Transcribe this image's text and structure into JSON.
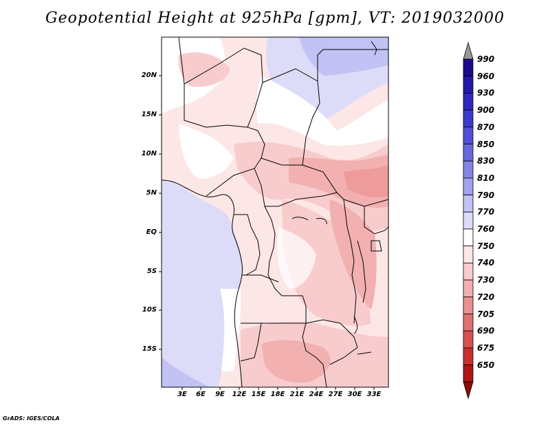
{
  "title": "Geopotential Height at 925hPa [gpm], VT: 2019032000",
  "credit": "GrADS: IGES/COLA",
  "map": {
    "lat_labels": [
      "20N",
      "15N",
      "10N",
      "5N",
      "EQ",
      "5S",
      "10S",
      "15S"
    ],
    "lon_labels": [
      "3E",
      "6E",
      "9E",
      "12E",
      "15E",
      "18E",
      "21E",
      "24E",
      "27E",
      "30E",
      "33E"
    ]
  },
  "colorbar": {
    "labels": [
      "990",
      "960",
      "930",
      "900",
      "870",
      "850",
      "830",
      "810",
      "790",
      "770",
      "760",
      "750",
      "740",
      "730",
      "720",
      "705",
      "690",
      "675",
      "650"
    ],
    "colors": [
      "#1c0a8c",
      "#2318a8",
      "#2e28bc",
      "#3a3acb",
      "#4f50d6",
      "#6868de",
      "#8484e6",
      "#a2a2ee",
      "#c2c2f4",
      "#dcdcf9",
      "#ffffff",
      "#fde6e6",
      "#f8cccc",
      "#f2b0b0",
      "#ea9090",
      "#e07070",
      "#d85050",
      "#c83030",
      "#b01414",
      "#8c0a0a"
    ]
  }
}
